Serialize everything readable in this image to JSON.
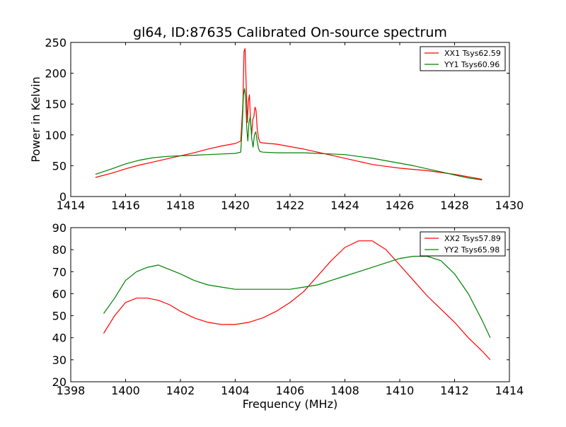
{
  "figure": {
    "title": "gl64, ID:87635 Calibrated On-source spectrum"
  },
  "chart_data": [
    {
      "type": "line",
      "title": "gl64, ID:87635 Calibrated On-source spectrum",
      "xlabel": "",
      "ylabel": "Power in Kelvin",
      "xlim": [
        1414,
        1430
      ],
      "ylim": [
        0,
        250
      ],
      "x_ticks": [
        1414,
        1416,
        1418,
        1420,
        1422,
        1424,
        1426,
        1428,
        1430
      ],
      "y_ticks": [
        0,
        50,
        100,
        150,
        200,
        250
      ],
      "grid": false,
      "legend_position": "top-right",
      "series": [
        {
          "name": "XX1 Tsys62.59",
          "color": "#ff0000",
          "x": [
            1414.9,
            1415.5,
            1416.0,
            1416.5,
            1417.0,
            1417.5,
            1418.0,
            1418.5,
            1419.0,
            1419.5,
            1420.0,
            1420.2,
            1420.28,
            1420.32,
            1420.36,
            1420.4,
            1420.44,
            1420.48,
            1420.52,
            1420.56,
            1420.6,
            1420.64,
            1420.68,
            1420.72,
            1420.76,
            1420.8,
            1420.85,
            1420.9,
            1421.0,
            1421.5,
            1422.0,
            1422.5,
            1423.0,
            1423.5,
            1424.0,
            1424.5,
            1425.0,
            1425.5,
            1426.0,
            1426.5,
            1427.0,
            1427.5,
            1428.0,
            1428.5,
            1429.0
          ],
          "values": [
            31,
            38,
            45,
            51,
            56,
            61,
            66,
            71,
            77,
            82,
            86,
            90,
            150,
            235,
            240,
            180,
            120,
            155,
            165,
            120,
            100,
            125,
            130,
            145,
            140,
            110,
            95,
            88,
            87,
            85,
            81,
            77,
            72,
            67,
            62,
            57,
            52,
            49,
            46,
            44,
            42,
            39,
            36,
            32,
            28
          ]
        },
        {
          "name": "YY1 Tsys60.96",
          "color": "#008000",
          "x": [
            1414.9,
            1415.5,
            1416.0,
            1416.5,
            1417.0,
            1417.5,
            1418.0,
            1418.5,
            1419.0,
            1419.5,
            1420.0,
            1420.2,
            1420.26,
            1420.3,
            1420.34,
            1420.38,
            1420.42,
            1420.46,
            1420.5,
            1420.55,
            1420.6,
            1420.65,
            1420.7,
            1420.75,
            1420.8,
            1420.85,
            1420.9,
            1421.0,
            1421.5,
            1422.0,
            1422.5,
            1423.0,
            1423.5,
            1424.0,
            1424.5,
            1425.0,
            1425.5,
            1426.0,
            1426.5,
            1427.0,
            1427.5,
            1428.0,
            1428.5,
            1429.0
          ],
          "values": [
            36,
            45,
            53,
            59,
            63,
            65,
            66,
            67,
            68,
            69,
            70,
            72,
            120,
            165,
            175,
            160,
            110,
            90,
            120,
            130,
            95,
            80,
            100,
            105,
            90,
            78,
            73,
            72,
            71,
            71,
            71,
            70,
            69,
            68,
            65,
            62,
            58,
            54,
            50,
            45,
            40,
            35,
            30,
            27
          ]
        }
      ]
    },
    {
      "type": "line",
      "title": "",
      "xlabel": "Frequency (MHz)",
      "ylabel": "",
      "xlim": [
        1398,
        1414
      ],
      "ylim": [
        20,
        90
      ],
      "x_ticks": [
        1398,
        1400,
        1402,
        1404,
        1406,
        1408,
        1410,
        1412,
        1414
      ],
      "y_ticks": [
        20,
        30,
        40,
        50,
        60,
        70,
        80,
        90
      ],
      "grid": false,
      "legend_position": "top-right",
      "series": [
        {
          "name": "XX2 Tsys57.89",
          "color": "#ff0000",
          "x": [
            1399.2,
            1399.6,
            1400.0,
            1400.4,
            1400.8,
            1401.2,
            1401.6,
            1402.0,
            1402.5,
            1403.0,
            1403.5,
            1404.0,
            1404.5,
            1405.0,
            1405.5,
            1406.0,
            1406.5,
            1407.0,
            1407.5,
            1408.0,
            1408.5,
            1409.0,
            1409.5,
            1410.0,
            1410.5,
            1411.0,
            1411.5,
            1412.0,
            1412.5,
            1413.0,
            1413.3
          ],
          "values": [
            42,
            50,
            56,
            58,
            58,
            57,
            55,
            52,
            49,
            47,
            46,
            46,
            47,
            49,
            52,
            56,
            61,
            68,
            75,
            81,
            84,
            84,
            80,
            73,
            66,
            59,
            53,
            47,
            40,
            34,
            30
          ]
        },
        {
          "name": "YY2 Tsys65.98",
          "color": "#008000",
          "x": [
            1399.2,
            1399.6,
            1400.0,
            1400.4,
            1400.8,
            1401.2,
            1401.6,
            1402.0,
            1402.5,
            1403.0,
            1403.5,
            1404.0,
            1404.5,
            1405.0,
            1405.5,
            1406.0,
            1406.5,
            1407.0,
            1407.5,
            1408.0,
            1408.5,
            1409.0,
            1409.5,
            1410.0,
            1410.5,
            1411.0,
            1411.5,
            1412.0,
            1412.5,
            1413.0,
            1413.3
          ],
          "values": [
            51,
            58,
            66,
            70,
            72,
            73,
            71,
            69,
            66,
            64,
            63,
            62,
            62,
            62,
            62,
            62,
            63,
            64,
            66,
            68,
            70,
            72,
            74,
            76,
            77,
            77,
            75,
            69,
            60,
            48,
            40
          ]
        }
      ]
    }
  ]
}
